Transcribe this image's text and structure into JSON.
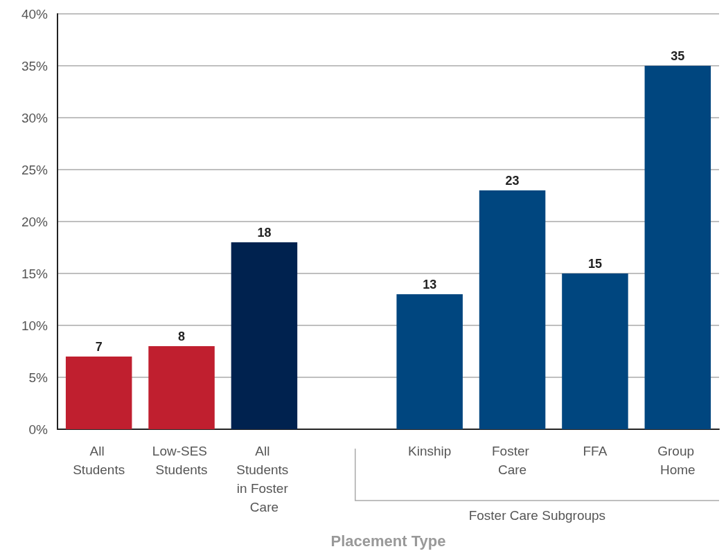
{
  "chart_data": {
    "type": "bar",
    "xlabel": "Placement Type",
    "categories": [
      "All Students",
      "Low-SES Students",
      "All Students in Foster Care",
      null,
      "Kinship",
      "Foster Care",
      "FFA",
      "Group Home"
    ],
    "values": [
      7,
      8,
      18,
      null,
      13,
      23,
      15,
      35
    ],
    "colors": [
      "#c01f2f",
      "#c01f2f",
      "#00224f",
      null,
      "#00467f",
      "#00467f",
      "#00467f",
      "#00467f"
    ],
    "data_labels": true,
    "ylim": [
      0,
      40
    ],
    "yticks": [
      {
        "value": 0,
        "label": "0%"
      },
      {
        "value": 5,
        "label": "5%"
      },
      {
        "value": 10,
        "label": "10%"
      },
      {
        "value": 15,
        "label": "15%"
      },
      {
        "value": 20,
        "label": "20%"
      },
      {
        "value": 25,
        "label": "25%"
      },
      {
        "value": 30,
        "label": "30%"
      },
      {
        "value": 35,
        "label": "35%"
      },
      {
        "value": 40,
        "label": "40%"
      }
    ],
    "grid": "y",
    "annotations": [
      "Foster Care Subgroups"
    ]
  }
}
